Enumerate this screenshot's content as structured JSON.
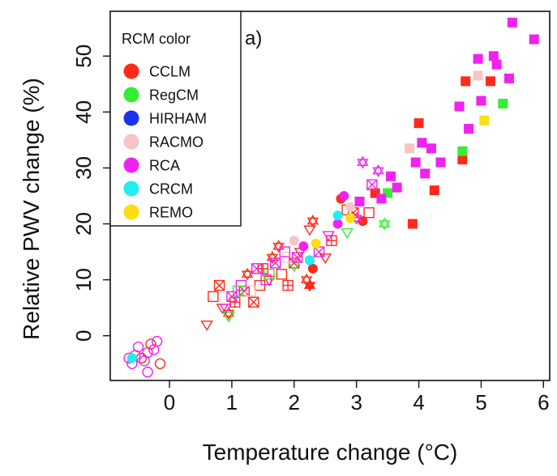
{
  "chart_data": {
    "type": "scatter",
    "panel_label": "a)",
    "xlabel": "Temperature change (°C)",
    "ylabel": "Relative PWV change (%)",
    "xlim": [
      -0.95,
      6.1
    ],
    "ylim": [
      -8,
      58
    ],
    "xticks": [
      0,
      1,
      2,
      3,
      4,
      5,
      6
    ],
    "yticks": [
      0,
      10,
      20,
      30,
      40,
      50
    ],
    "grid": false,
    "legend": {
      "title": "RCM color",
      "placement": "top-left",
      "entries": [
        {
          "name": "CCLM",
          "color": "#ff2a1a"
        },
        {
          "name": "RegCM",
          "color": "#33ee33"
        },
        {
          "name": "HIRHAM",
          "color": "#1a33ee"
        },
        {
          "name": "RACMO",
          "color": "#f5c5c5"
        },
        {
          "name": "RCA",
          "color": "#f022f0"
        },
        {
          "name": "CRCM",
          "color": "#22eeee"
        },
        {
          "name": "REMO",
          "color": "#ffdd11"
        }
      ]
    },
    "series": [
      {
        "name": "CCLM",
        "color": "#ff2a1a",
        "points": [
          {
            "x": -0.15,
            "y": -5,
            "m": "circle-open"
          },
          {
            "x": -0.3,
            "y": -1.5,
            "m": "circle-open"
          },
          {
            "x": -0.45,
            "y": -4,
            "m": "circle-open"
          },
          {
            "x": 0.7,
            "y": 7,
            "m": "square-open"
          },
          {
            "x": 0.8,
            "y": 9,
            "m": "square-x"
          },
          {
            "x": 0.85,
            "y": 5,
            "m": "triangle-down-open"
          },
          {
            "x": 0.6,
            "y": 2,
            "m": "triangle-down-open"
          },
          {
            "x": 0.95,
            "y": 4,
            "m": "star-open"
          },
          {
            "x": 1.05,
            "y": 6,
            "m": "square-plus"
          },
          {
            "x": 1.2,
            "y": 8,
            "m": "square-x"
          },
          {
            "x": 1.25,
            "y": 11,
            "m": "star-open"
          },
          {
            "x": 1.35,
            "y": 6,
            "m": "square-x"
          },
          {
            "x": 1.45,
            "y": 9,
            "m": "square-open"
          },
          {
            "x": 1.5,
            "y": 12,
            "m": "square-plus"
          },
          {
            "x": 1.6,
            "y": 10,
            "m": "triangle-down-open"
          },
          {
            "x": 1.65,
            "y": 14,
            "m": "star-open"
          },
          {
            "x": 1.8,
            "y": 11,
            "m": "square-open"
          },
          {
            "x": 1.9,
            "y": 9,
            "m": "square-plus"
          },
          {
            "x": 1.75,
            "y": 16,
            "m": "star-open"
          },
          {
            "x": 2.0,
            "y": 13,
            "m": "square-x"
          },
          {
            "x": 2.1,
            "y": 15,
            "m": "triangle-down-open"
          },
          {
            "x": 2.2,
            "y": 10,
            "m": "star-open"
          },
          {
            "x": 2.25,
            "y": 9,
            "m": "star-filled"
          },
          {
            "x": 2.3,
            "y": 12,
            "m": "circle-filled"
          },
          {
            "x": 2.25,
            "y": 19,
            "m": "triangle-down-open"
          },
          {
            "x": 2.3,
            "y": 20.5,
            "m": "star-open"
          },
          {
            "x": 2.5,
            "y": 14,
            "m": "triangle-down-open"
          },
          {
            "x": 2.6,
            "y": 17,
            "m": "square-plus"
          },
          {
            "x": 2.75,
            "y": 24.5,
            "m": "circle-filled"
          },
          {
            "x": 2.85,
            "y": 22.5,
            "m": "square-open"
          },
          {
            "x": 2.95,
            "y": 22,
            "m": "square-x"
          },
          {
            "x": 3.1,
            "y": 20.5,
            "m": "circle-filled"
          },
          {
            "x": 3.2,
            "y": 22,
            "m": "square-open"
          },
          {
            "x": 3.3,
            "y": 25.5,
            "m": "square-filled"
          },
          {
            "x": 3.9,
            "y": 20,
            "m": "square-filled"
          },
          {
            "x": 4.0,
            "y": 38,
            "m": "square-filled"
          },
          {
            "x": 4.25,
            "y": 26,
            "m": "square-filled"
          },
          {
            "x": 4.7,
            "y": 31.5,
            "m": "square-filled"
          },
          {
            "x": 4.75,
            "y": 45.5,
            "m": "square-filled"
          },
          {
            "x": 5.15,
            "y": 45.5,
            "m": "square-filled"
          }
        ]
      },
      {
        "name": "RegCM",
        "color": "#33ee33",
        "points": [
          {
            "x": 0.95,
            "y": 3.5,
            "m": "triangle-down-open"
          },
          {
            "x": 1.1,
            "y": 8,
            "m": "square-open"
          },
          {
            "x": 1.6,
            "y": 11,
            "m": "square-open"
          },
          {
            "x": 2.0,
            "y": 12.5,
            "m": "triangle-down-open"
          },
          {
            "x": 2.85,
            "y": 18.5,
            "m": "triangle-down-open"
          },
          {
            "x": 3.5,
            "y": 25.5,
            "m": "square-filled"
          },
          {
            "x": 3.45,
            "y": 20,
            "m": "star-open"
          },
          {
            "x": 4.7,
            "y": 33,
            "m": "square-filled"
          },
          {
            "x": 5.35,
            "y": 41.5,
            "m": "square-filled"
          }
        ]
      },
      {
        "name": "HIRHAM",
        "color": "#1a33ee",
        "points": [
          {
            "x": 2.25,
            "y": 13.5,
            "m": "circle-filled"
          }
        ]
      },
      {
        "name": "RACMO",
        "color": "#f5c5c5",
        "points": [
          {
            "x": 1.3,
            "y": 8,
            "m": "square-open"
          },
          {
            "x": 1.9,
            "y": 14,
            "m": "square-open"
          },
          {
            "x": 2.0,
            "y": 17,
            "m": "circle-filled"
          },
          {
            "x": 2.9,
            "y": 23,
            "m": "circle-filled"
          },
          {
            "x": 3.85,
            "y": 33.5,
            "m": "square-filled"
          },
          {
            "x": 4.95,
            "y": 46.5,
            "m": "square-filled"
          }
        ]
      },
      {
        "name": "RCA",
        "color": "#f022f0",
        "points": [
          {
            "x": -0.2,
            "y": -1,
            "m": "circle-open"
          },
          {
            "x": -0.25,
            "y": -2.5,
            "m": "circle-open"
          },
          {
            "x": -0.35,
            "y": -3,
            "m": "circle-open"
          },
          {
            "x": -0.4,
            "y": -4.5,
            "m": "circle-open"
          },
          {
            "x": -0.5,
            "y": -2,
            "m": "circle-open"
          },
          {
            "x": -0.55,
            "y": -3.5,
            "m": "circle-open"
          },
          {
            "x": -0.35,
            "y": -6.5,
            "m": "circle-open"
          },
          {
            "x": -0.65,
            "y": -4,
            "m": "circle-open"
          },
          {
            "x": -0.6,
            "y": -5,
            "m": "circle-open"
          },
          {
            "x": 0.9,
            "y": 5,
            "m": "triangle-down-open"
          },
          {
            "x": 1.0,
            "y": 7,
            "m": "square-x"
          },
          {
            "x": 1.15,
            "y": 9,
            "m": "square-open"
          },
          {
            "x": 1.4,
            "y": 12,
            "m": "square-x"
          },
          {
            "x": 1.55,
            "y": 10,
            "m": "square-open"
          },
          {
            "x": 1.7,
            "y": 13,
            "m": "square-x"
          },
          {
            "x": 1.85,
            "y": 15,
            "m": "square-open"
          },
          {
            "x": 2.05,
            "y": 14,
            "m": "square-x"
          },
          {
            "x": 2.15,
            "y": 16,
            "m": "circle-filled"
          },
          {
            "x": 2.4,
            "y": 15,
            "m": "square-x"
          },
          {
            "x": 2.55,
            "y": 18,
            "m": "triangle-down-open"
          },
          {
            "x": 2.7,
            "y": 20,
            "m": "circle-filled"
          },
          {
            "x": 2.8,
            "y": 25,
            "m": "circle-filled"
          },
          {
            "x": 3.0,
            "y": 21,
            "m": "star-open"
          },
          {
            "x": 3.05,
            "y": 24,
            "m": "square-filled"
          },
          {
            "x": 3.1,
            "y": 31,
            "m": "star-open"
          },
          {
            "x": 3.25,
            "y": 27,
            "m": "square-x"
          },
          {
            "x": 3.35,
            "y": 29.5,
            "m": "star-open"
          },
          {
            "x": 3.4,
            "y": 24.5,
            "m": "square-filled"
          },
          {
            "x": 3.55,
            "y": 28.5,
            "m": "square-filled"
          },
          {
            "x": 3.65,
            "y": 26.5,
            "m": "square-filled"
          },
          {
            "x": 3.95,
            "y": 31,
            "m": "square-filled"
          },
          {
            "x": 4.05,
            "y": 34.5,
            "m": "square-filled"
          },
          {
            "x": 4.1,
            "y": 29,
            "m": "square-filled"
          },
          {
            "x": 4.2,
            "y": 33.5,
            "m": "square-filled"
          },
          {
            "x": 4.35,
            "y": 31,
            "m": "square-filled"
          },
          {
            "x": 4.65,
            "y": 41,
            "m": "square-filled"
          },
          {
            "x": 4.8,
            "y": 37,
            "m": "square-filled"
          },
          {
            "x": 4.95,
            "y": 49.5,
            "m": "square-filled"
          },
          {
            "x": 5.0,
            "y": 42,
            "m": "square-filled"
          },
          {
            "x": 5.2,
            "y": 50,
            "m": "square-filled"
          },
          {
            "x": 5.25,
            "y": 48.5,
            "m": "square-filled"
          },
          {
            "x": 5.45,
            "y": 46,
            "m": "square-filled"
          },
          {
            "x": 5.5,
            "y": 56,
            "m": "square-filled"
          },
          {
            "x": 5.85,
            "y": 53,
            "m": "square-filled"
          }
        ]
      },
      {
        "name": "CRCM",
        "color": "#22eeee",
        "points": [
          {
            "x": -0.6,
            "y": -4,
            "m": "circle-filled"
          },
          {
            "x": 2.25,
            "y": 13.5,
            "m": "circle-filled"
          },
          {
            "x": 2.7,
            "y": 21.5,
            "m": "circle-filled"
          }
        ]
      },
      {
        "name": "REMO",
        "color": "#ffdd11",
        "points": [
          {
            "x": 2.35,
            "y": 16.5,
            "m": "circle-filled"
          },
          {
            "x": 2.9,
            "y": 21,
            "m": "circle-filled"
          },
          {
            "x": 5.05,
            "y": 38.5,
            "m": "square-filled"
          }
        ]
      }
    ]
  }
}
